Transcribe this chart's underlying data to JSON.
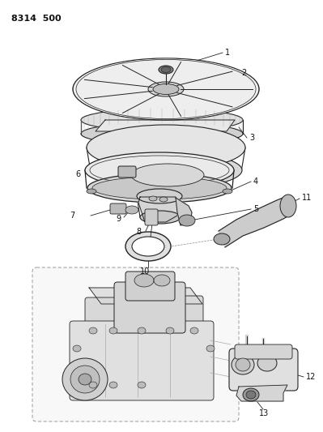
{
  "title": "8314  500",
  "background_color": "#ffffff",
  "fig_width": 3.99,
  "fig_height": 5.33,
  "dpi": 100,
  "line_color": "#222222",
  "text_color": "#111111",
  "light_gray": "#e8e8e8",
  "mid_gray": "#cccccc",
  "dark_gray": "#888888"
}
